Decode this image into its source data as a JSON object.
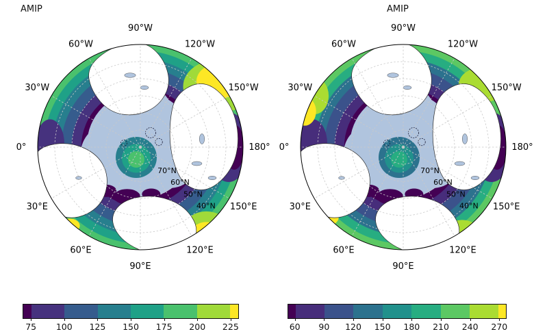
{
  "figure": {
    "background": "#ffffff",
    "colors": {
      "ice": "#b0c4de",
      "grid": "#c9c9c9",
      "coast": "#2a2a2a",
      "boundary": "#000000"
    },
    "panels": [
      {
        "title": "AMIP",
        "lon_labels": [
          "0°",
          "30°W",
          "60°W",
          "90°W",
          "120°W",
          "150°W",
          "180°",
          "150°E",
          "120°E",
          "90°E",
          "60°E",
          "30°E"
        ],
        "lat_labels": [
          "70°N",
          "60°N",
          "50°N",
          "40°N"
        ],
        "colorbar_ticks": [
          "75",
          "100",
          "125",
          "150",
          "175",
          "200",
          "225"
        ],
        "palette": [
          "#440154",
          "#46327e",
          "#365c8d",
          "#277f8e",
          "#1fa187",
          "#4ac16d",
          "#a0da39",
          "#fde725"
        ]
      },
      {
        "title": "AMIP",
        "lon_labels": [
          "0°",
          "30°W",
          "60°W",
          "90°W",
          "120°W",
          "150°W",
          "180°",
          "150°E",
          "120°E",
          "90°E",
          "60°E",
          "30°E"
        ],
        "lat_labels": [
          "70°N",
          "60°N",
          "50°N",
          "40°N"
        ],
        "colorbar_ticks": [
          "60",
          "90",
          "120",
          "150",
          "180",
          "210",
          "240",
          "270"
        ],
        "palette": [
          "#440154",
          "#472d7b",
          "#3b528b",
          "#2c728e",
          "#21918c",
          "#27ad81",
          "#5cc863",
          "#aadc32",
          "#fde725"
        ]
      }
    ]
  },
  "chart_data": [
    {
      "type": "heatmap",
      "subtype": "filled_contour_polar_map",
      "title": "AMIP",
      "projection": "north_polar_stereographic",
      "colormap": "viridis",
      "colorbar_orientation": "horizontal",
      "colorbar_ticks": [
        75,
        100,
        125,
        150,
        175,
        200,
        225
      ],
      "contour_interval": 25,
      "value_range_shown": [
        75,
        225
      ],
      "lon_tick_labels": [
        "0°",
        "30°W",
        "60°W",
        "90°W",
        "120°W",
        "150°W",
        "180°",
        "150°E",
        "120°E",
        "90°E",
        "60°E",
        "30°E"
      ],
      "lat_tick_labels": [
        "70°N",
        "60°N",
        "50°N",
        "40°N"
      ],
      "grid": true,
      "legend_position": "bottom"
    },
    {
      "type": "heatmap",
      "subtype": "filled_contour_polar_map",
      "title": "AMIP",
      "projection": "north_polar_stereographic",
      "colormap": "viridis",
      "colorbar_orientation": "horizontal",
      "colorbar_ticks": [
        60,
        90,
        120,
        150,
        180,
        210,
        240,
        270
      ],
      "contour_interval": 30,
      "value_range_shown": [
        60,
        270
      ],
      "lon_tick_labels": [
        "0°",
        "30°W",
        "60°W",
        "90°W",
        "120°W",
        "150°W",
        "180°",
        "150°E",
        "120°E",
        "90°E",
        "60°E",
        "30°E"
      ],
      "lat_tick_labels": [
        "70°N",
        "60°N",
        "50°N",
        "40°N"
      ],
      "grid": true,
      "legend_position": "bottom"
    }
  ]
}
